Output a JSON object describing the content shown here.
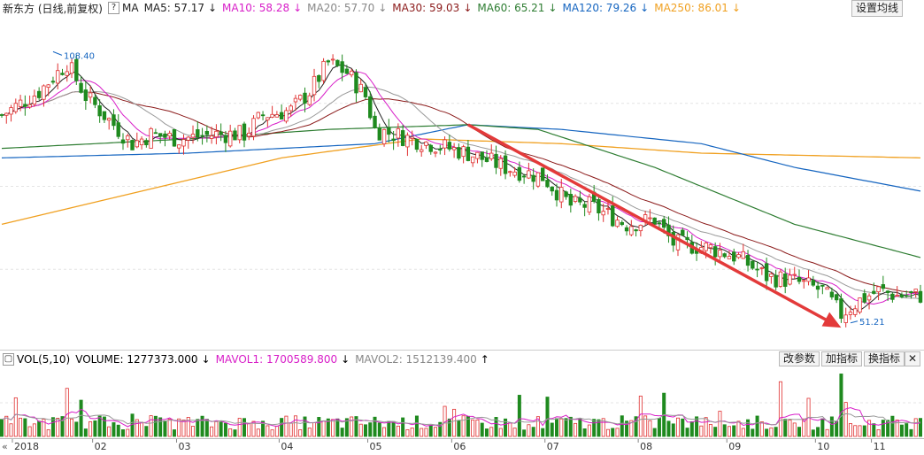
{
  "header": {
    "stock_label": "新东方 (日线,前复权)",
    "help_glyph": "?",
    "ma_label": "MA",
    "indicators": [
      {
        "label": "MA5: 57.17",
        "color": "#222222",
        "arrow": "↓"
      },
      {
        "label": "MA10: 58.28",
        "color": "#d81ec8",
        "arrow": "↓"
      },
      {
        "label": "MA20: 57.70",
        "color": "#888888",
        "arrow": "↓"
      },
      {
        "label": "MA30: 59.03",
        "color": "#8b1a1a",
        "arrow": "↓"
      },
      {
        "label": "MA60: 65.21",
        "color": "#2e7d32",
        "arrow": "↓"
      },
      {
        "label": "MA120: 79.26",
        "color": "#1565c0",
        "arrow": "↓"
      },
      {
        "label": "MA250: 86.01",
        "color": "#f0a020",
        "arrow": "↓"
      }
    ],
    "settings_button": "设置均线"
  },
  "volume_header": {
    "expand_glyph": "▢",
    "vol_label": "VOL(5,10)",
    "volume": "VOLUME: 1277373.000",
    "volume_arrow": "↓",
    "mavol1": "MAVOL1: 1700589.800",
    "mavol1_arrow": "↓",
    "mavol2": "MAVOL2: 1512139.400",
    "mavol2_arrow": "↑",
    "btn_params": "改参数",
    "btn_add": "加指标",
    "btn_switch": "换指标",
    "btn_close": "✕"
  },
  "colors": {
    "up": "#e03030",
    "down": "#1f8a1f",
    "ma5": "#222222",
    "ma10": "#d81ec8",
    "ma20": "#999999",
    "ma30": "#8b1a1a",
    "ma60": "#2e7d32",
    "ma120": "#1565c0",
    "ma250": "#f0a020",
    "trend_arrow": "#e33a3a",
    "label": "#1565c0"
  },
  "chart_data": {
    "type": "candlestick",
    "ylim": [
      45,
      115
    ],
    "months": [
      "2018",
      "02",
      "03",
      "04",
      "05",
      "06",
      "07",
      "08",
      "09",
      "10",
      "11"
    ],
    "annotations": {
      "high": "108.40",
      "low": "51.21"
    },
    "price_path": [
      [
        0,
        95
      ],
      [
        8,
        100
      ],
      [
        14,
        106
      ],
      [
        18,
        99
      ],
      [
        24,
        93
      ],
      [
        28,
        89
      ],
      [
        32,
        91
      ],
      [
        38,
        90
      ],
      [
        46,
        91
      ],
      [
        52,
        91
      ],
      [
        56,
        95
      ],
      [
        62,
        96
      ],
      [
        66,
        100
      ],
      [
        70,
        106
      ],
      [
        74,
        104
      ],
      [
        78,
        99
      ],
      [
        80,
        92
      ],
      [
        84,
        91
      ],
      [
        92,
        89
      ],
      [
        100,
        87
      ],
      [
        108,
        84
      ],
      [
        116,
        82
      ],
      [
        122,
        76
      ],
      [
        126,
        76
      ],
      [
        134,
        72
      ],
      [
        140,
        73
      ],
      [
        144,
        68
      ],
      [
        152,
        67
      ],
      [
        158,
        65
      ],
      [
        164,
        61
      ],
      [
        170,
        60
      ],
      [
        176,
        58
      ],
      [
        180,
        53
      ],
      [
        184,
        56
      ],
      [
        188,
        58
      ],
      [
        192,
        57
      ],
      [
        197,
        57
      ]
    ],
    "ma250_path": [
      [
        0,
        72
      ],
      [
        30,
        79
      ],
      [
        60,
        86
      ],
      [
        90,
        90
      ],
      [
        120,
        89
      ],
      [
        150,
        87
      ],
      [
        197,
        86
      ]
    ],
    "ma120_path": [
      [
        0,
        86
      ],
      [
        40,
        87
      ],
      [
        80,
        89
      ],
      [
        100,
        93
      ],
      [
        120,
        92
      ],
      [
        150,
        89
      ],
      [
        170,
        84
      ],
      [
        197,
        79
      ]
    ],
    "ma60_path": [
      [
        0,
        88
      ],
      [
        40,
        90
      ],
      [
        70,
        92
      ],
      [
        100,
        93
      ],
      [
        115,
        92
      ],
      [
        140,
        84
      ],
      [
        170,
        72
      ],
      [
        197,
        65
      ]
    ],
    "volume_ylim": [
      0,
      4200000
    ],
    "volume_seed": 7
  }
}
